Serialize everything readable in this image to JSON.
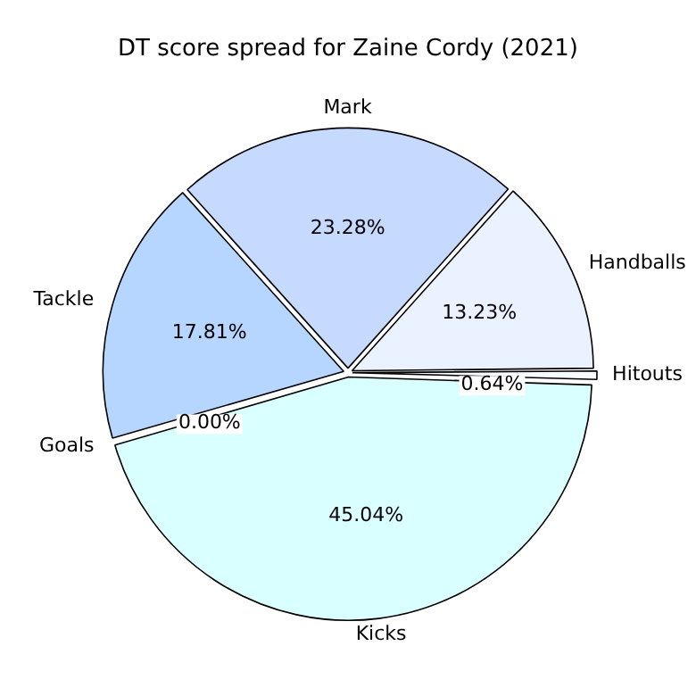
{
  "chart_data": {
    "type": "pie",
    "title": "DT score spread for Zaine Cordy (2021)",
    "categories": [
      "Mark",
      "Handballs",
      "Hitouts",
      "Kicks",
      "Goals",
      "Tackle"
    ],
    "values": [
      23.28,
      13.23,
      0.64,
      45.04,
      0.0,
      17.81
    ],
    "colors": [
      "#c6d9ff",
      "#eaf1ff",
      "#f8fbff",
      "#d9ffff",
      "#cfe6ff",
      "#b7d6ff"
    ],
    "value_labels": [
      "23.28%",
      "13.23%",
      "0.64%",
      "45.04%",
      "0.00%",
      "17.81%"
    ],
    "legend": false
  }
}
